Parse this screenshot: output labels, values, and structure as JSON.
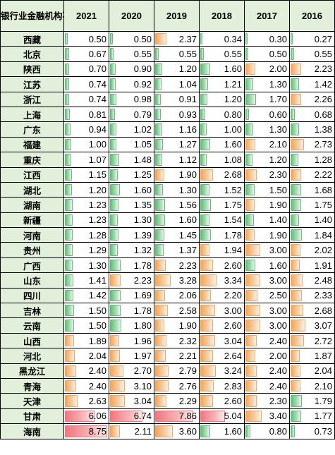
{
  "header": {
    "corner_label": "银行业金融机构不良率",
    "years": [
      "2021",
      "2020",
      "2019",
      "2018",
      "2017",
      "2016"
    ]
  },
  "colors": {
    "header_fill": "#e2efda",
    "bar_green": "#63be7b",
    "bar_orange": "#f2a65e",
    "bar_red": "#f07880"
  },
  "scale": {
    "max_rate": 8.75
  },
  "rows": [
    {
      "region": "西藏",
      "values": [
        "0.50",
        "0.50",
        "2.37",
        "0.34",
        "0.30",
        "0.27"
      ]
    },
    {
      "region": "北京",
      "values": [
        "0.67",
        "0.55",
        "0.55",
        "0.55",
        "0.50",
        "0.55"
      ]
    },
    {
      "region": "陕西",
      "values": [
        "0.70",
        "0.90",
        "1.20",
        "1.60",
        "2.00",
        "2.23"
      ]
    },
    {
      "region": "江苏",
      "values": [
        "0.74",
        "0.92",
        "1.04",
        "1.21",
        "1.30",
        "1.42"
      ]
    },
    {
      "region": "浙江",
      "values": [
        "0.74",
        "0.98",
        "0.91",
        "1.20",
        "1.70",
        "2.26"
      ]
    },
    {
      "region": "上海",
      "values": [
        "0.81",
        "0.79",
        "0.93",
        "0.80",
        "0.60",
        "0.68"
      ]
    },
    {
      "region": "广东",
      "values": [
        "0.94",
        "1.02",
        "1.16",
        "1.00",
        "1.30",
        "1.38"
      ]
    },
    {
      "region": "福建",
      "values": [
        "1.00",
        "1.05",
        "1.27",
        "1.60",
        "2.10",
        "2.73"
      ]
    },
    {
      "region": "重庆",
      "values": [
        "1.07",
        "1.48",
        "1.12",
        "1.08",
        "1.20",
        "1.28"
      ]
    },
    {
      "region": "江西",
      "values": [
        "1.15",
        "1.25",
        "1.90",
        "2.68",
        "2.30",
        "2.22"
      ]
    },
    {
      "region": "湖北",
      "values": [
        "1.20",
        "1.60",
        "1.30",
        "1.52",
        "1.50",
        "1.68"
      ]
    },
    {
      "region": "湖南",
      "values": [
        "1.23",
        "1.35",
        "1.56",
        "1.75",
        "1.90",
        "1.75"
      ]
    },
    {
      "region": "新疆",
      "values": [
        "1.23",
        "1.30",
        "1.60",
        "1.54",
        "1.40",
        "1.40"
      ]
    },
    {
      "region": "河南",
      "values": [
        "1.28",
        "1.39",
        "1.45",
        "1.78",
        "1.90",
        "1.84"
      ]
    },
    {
      "region": "贵州",
      "values": [
        "1.29",
        "1.32",
        "1.37",
        "1.94",
        "3.00",
        "2.02"
      ]
    },
    {
      "region": "广西",
      "values": [
        "1.30",
        "1.78",
        "2.23",
        "2.60",
        "1.60",
        "1.91"
      ]
    },
    {
      "region": "山东",
      "values": [
        "1.41",
        "2.23",
        "3.28",
        "3.34",
        "3.00",
        "2.48"
      ]
    },
    {
      "region": "四川",
      "values": [
        "1.42",
        "1.69",
        "2.06",
        "2.20",
        "2.50",
        "2.33"
      ]
    },
    {
      "region": "吉林",
      "values": [
        "1.50",
        "1.78",
        "2.58",
        "3.00",
        "3.00",
        "2.68"
      ]
    },
    {
      "region": "云南",
      "values": [
        "1.50",
        "1.80",
        "1.90",
        "2.60",
        "3.00",
        "3.07"
      ]
    },
    {
      "region": "山西",
      "values": [
        "1.89",
        "1.96",
        "2.32",
        "3.04",
        "2.40",
        "2.72"
      ]
    },
    {
      "region": "河北",
      "values": [
        "2.04",
        "1.97",
        "2.21",
        "2.64",
        "2.00",
        "1.87"
      ]
    },
    {
      "region": "黑龙江",
      "values": [
        "2.40",
        "2.70",
        "2.79",
        "3.24",
        "2.40",
        "2.04"
      ]
    },
    {
      "region": "青海",
      "values": [
        "2.40",
        "3.10",
        "2.76",
        "2.83",
        "2.40",
        "2.10"
      ]
    },
    {
      "region": "天津",
      "values": [
        "2.63",
        "3.04",
        "2.29",
        "2.60",
        "2.30",
        "1.79"
      ]
    },
    {
      "region": "甘肃",
      "values": [
        "6.06",
        "6.74",
        "7.86",
        "5.04",
        "3.40",
        "1.77"
      ]
    },
    {
      "region": "海南",
      "values": [
        "8.75",
        "2.11",
        "3.60",
        "1.60",
        "0.80",
        "0.73"
      ]
    }
  ]
}
